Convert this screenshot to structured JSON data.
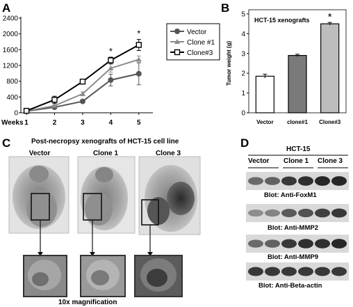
{
  "panels": {
    "a": "A",
    "b": "B",
    "c": "C",
    "d": "D"
  },
  "chart_data": [
    {
      "type": "line",
      "panel": "A",
      "x": [
        1,
        2,
        3,
        4,
        5
      ],
      "xlabel": "Weeks",
      "ylabel": "",
      "ylim": [
        0,
        2400
      ],
      "yticks": [
        "0",
        "400",
        "800",
        "1200",
        "1600",
        "2000",
        "2400"
      ],
      "legend_position": "top-right",
      "series": [
        {
          "name": "Vector",
          "values": [
            40,
            140,
            290,
            830,
            990
          ],
          "errors": [
            0,
            20,
            40,
            150,
            280
          ],
          "color": "#555555",
          "marker": "circle"
        },
        {
          "name": "Clone #1",
          "values": [
            45,
            180,
            480,
            1130,
            1350
          ],
          "errors": [
            0,
            25,
            50,
            100,
            90
          ],
          "color": "#8c8c8c",
          "marker": "triangle"
        },
        {
          "name": "Clone#3",
          "values": [
            50,
            330,
            790,
            1330,
            1720
          ],
          "errors": [
            0,
            90,
            50,
            80,
            140
          ],
          "color": "#000000",
          "marker": "square"
        }
      ],
      "annotations": [
        {
          "x": 4,
          "text": "*"
        },
        {
          "x": 5,
          "text": "*"
        }
      ]
    },
    {
      "type": "bar",
      "panel": "B",
      "title": "HCT-15 xenografts",
      "categories": [
        "Vector",
        "clone#1",
        "Clone#3"
      ],
      "values": [
        1.85,
        2.9,
        4.5
      ],
      "errors": [
        0.1,
        0.06,
        0.07
      ],
      "colors": [
        "#ffffff",
        "#7a7a7a",
        "#bdbdbd"
      ],
      "ylabel": "Tumor weight (g)",
      "ylim": [
        0,
        5
      ],
      "yticks": [
        "0",
        "1",
        "2",
        "3",
        "4",
        "5"
      ],
      "annotations": [
        {
          "category": "Clone#3",
          "text": "*"
        }
      ]
    }
  ],
  "photos": {
    "title": "Post-necropsy xenografts of HCT-15 cell line",
    "labels": [
      "Vector",
      "Clone 1",
      "Clone 3"
    ],
    "magnification": "10x magnification"
  },
  "blots": {
    "cell_line": "HCT-15",
    "lanes": [
      "Vector",
      "Clone 1",
      "Clone 3"
    ],
    "labels": [
      "Blot: Anti-FoxM1",
      "Blot: Anti-MMP2",
      "Blot: Anti-MMP9",
      "Blot: Anti-Beta-actin"
    ]
  }
}
